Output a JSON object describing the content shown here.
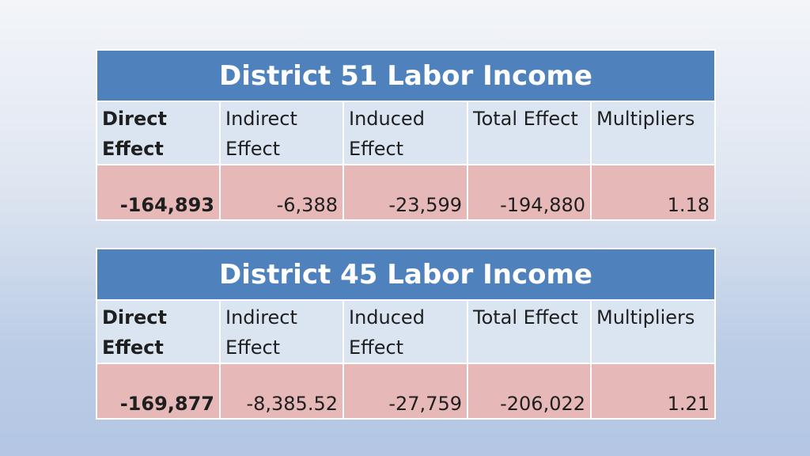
{
  "tables": [
    {
      "title": "District 51 Labor Income",
      "headers": [
        "Direct Effect",
        "Indirect Effect",
        "Induced Effect",
        "Total Effect",
        "Multipliers"
      ],
      "values": [
        "-164,893",
        "-6,388",
        "-23,599",
        "-194,880",
        "1.18"
      ]
    },
    {
      "title": "District 45 Labor Income",
      "headers": [
        "Direct Effect",
        "Indirect Effect",
        "Induced Effect",
        "Total Effect",
        "Multipliers"
      ],
      "values": [
        "-169,877",
        "-8,385.52",
        "-27,759",
        "-206,022",
        "1.21"
      ]
    }
  ],
  "colors": {
    "title_bg": "#4f81bd",
    "header_bg": "#dbe5f1",
    "value_bg": "#e6b8b7"
  }
}
